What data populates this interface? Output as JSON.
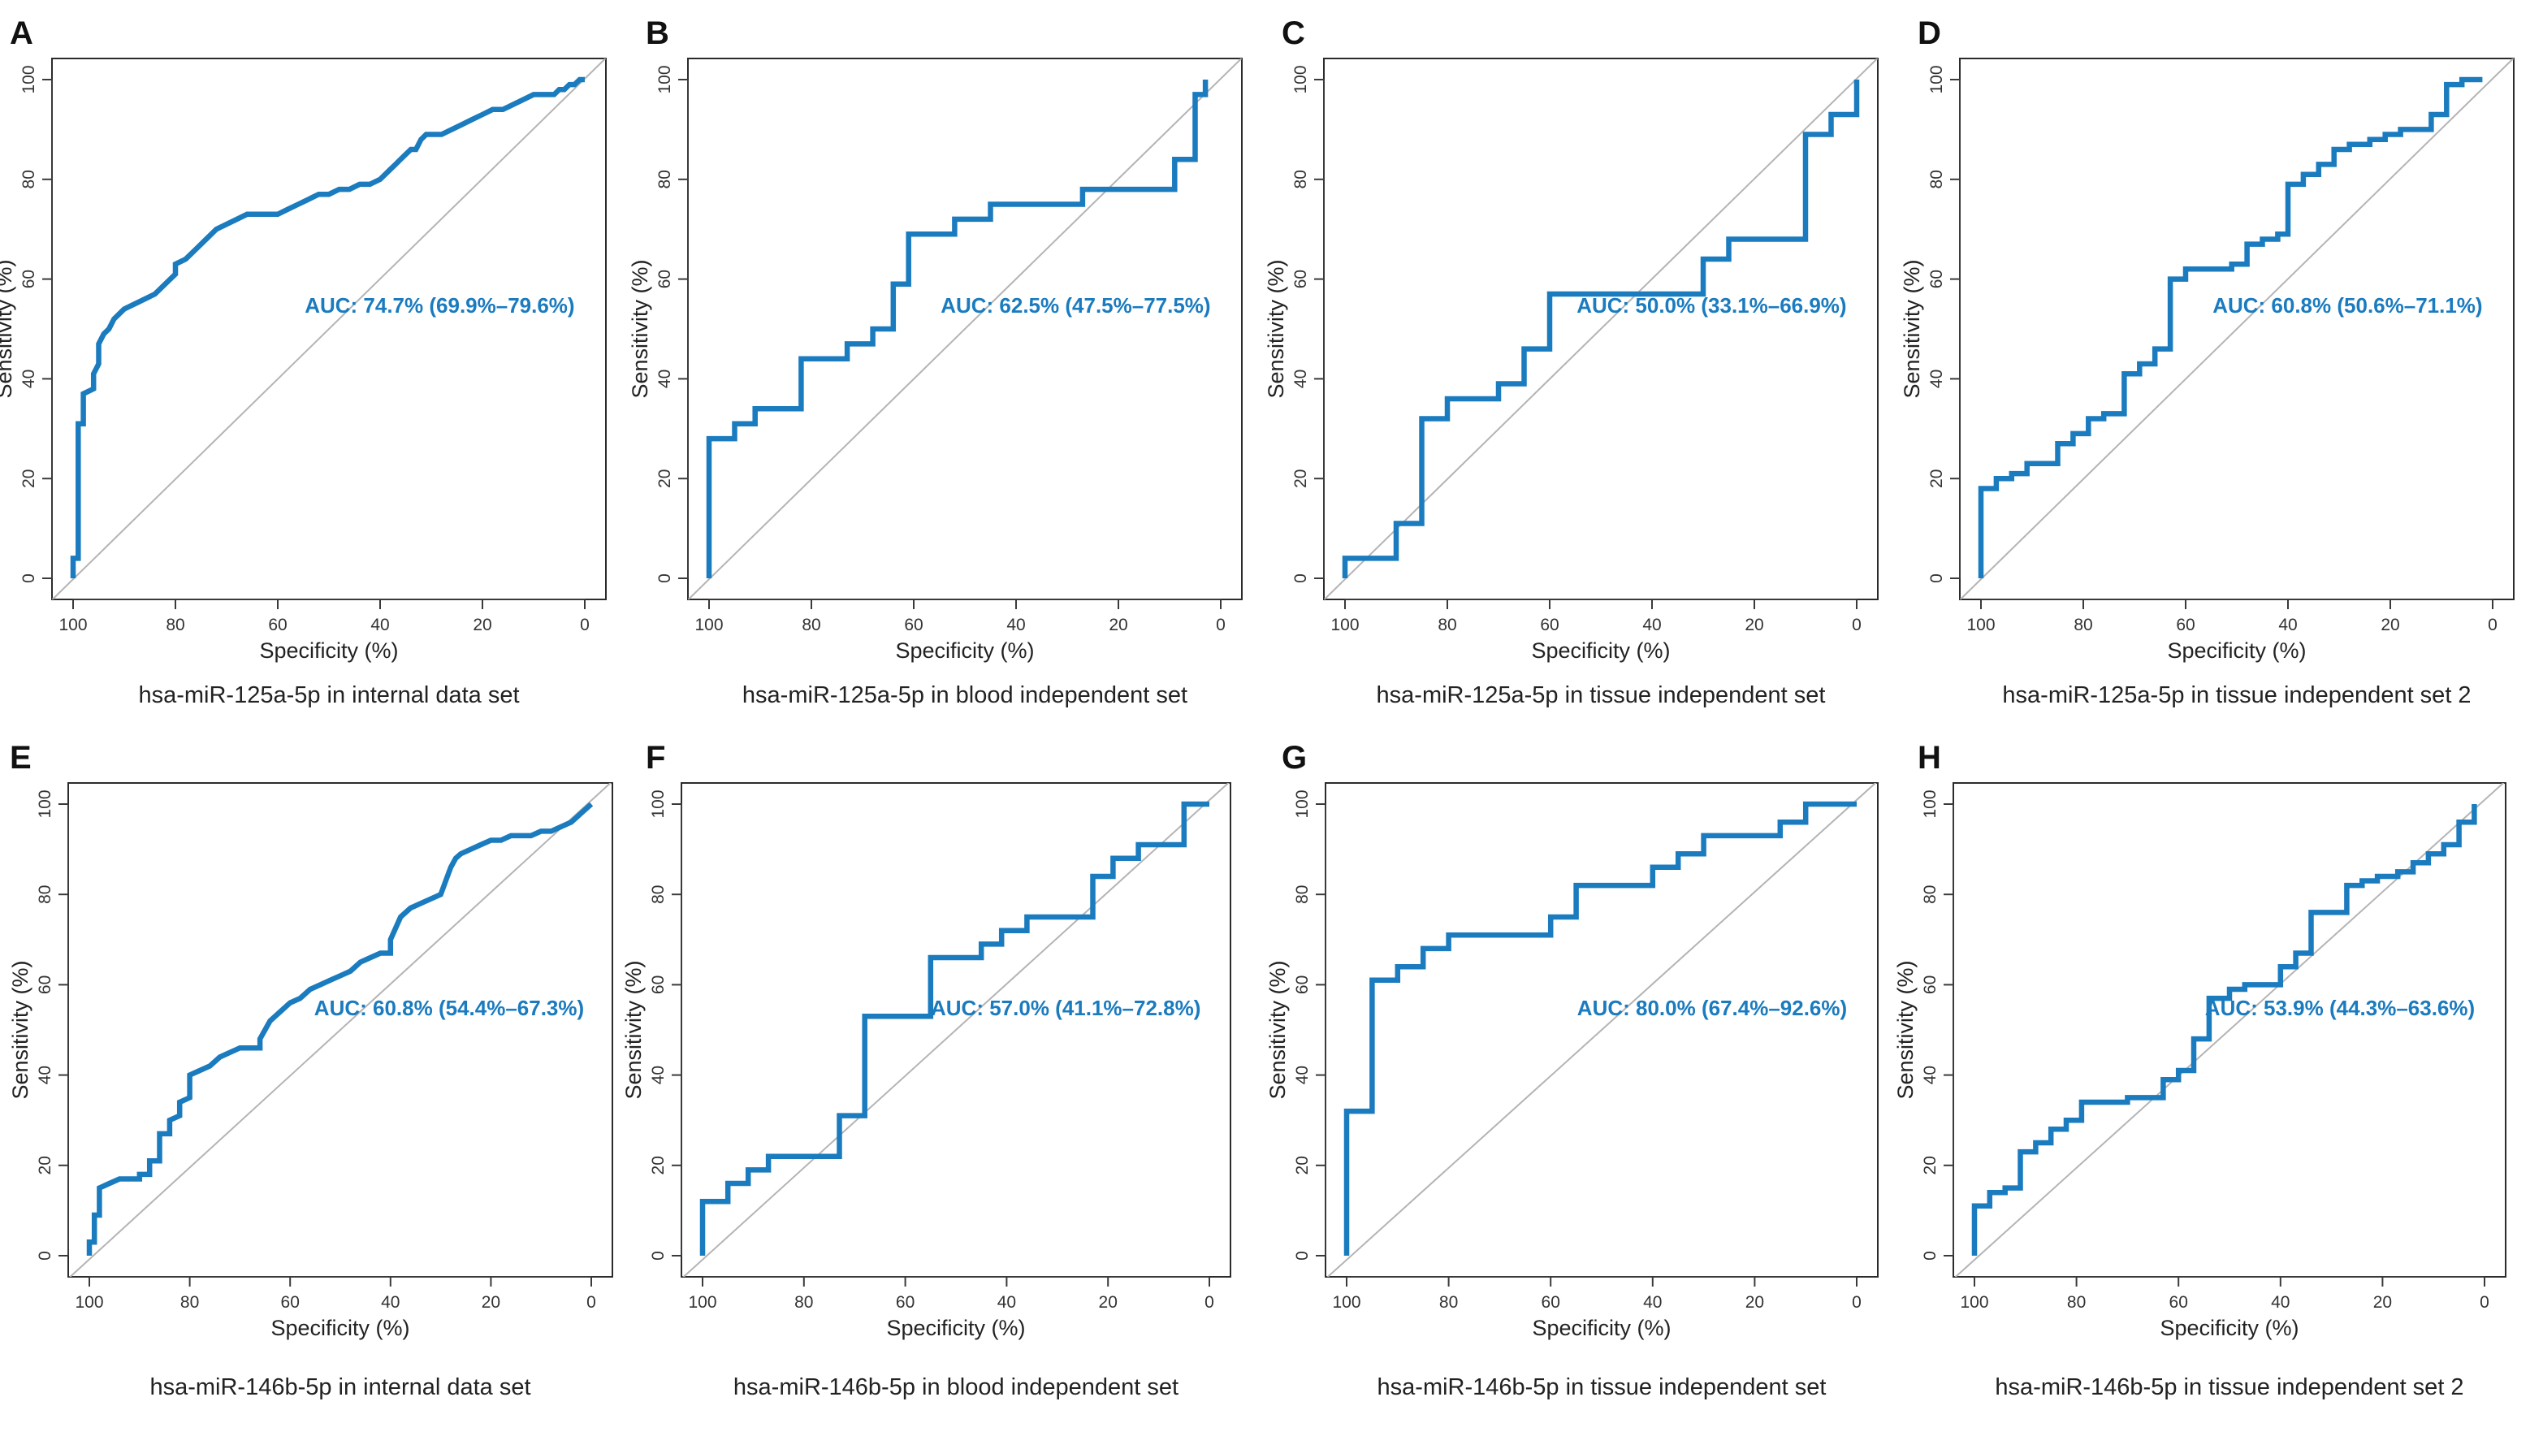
{
  "figure_title": "",
  "colors": {
    "curve": "#1a7bbf",
    "diagonal": "#b4b4b4",
    "auc_text": "#1a7bbf"
  },
  "chart_data": [
    {
      "panel": "A",
      "type": "line",
      "title": "hsa-miR-125a-5p in internal data set",
      "xlabel": "Specificity (%)",
      "ylabel": "Sensitivity (%)",
      "xlim": [
        100,
        0
      ],
      "ylim": [
        0,
        100
      ],
      "xticks": [
        100,
        80,
        60,
        40,
        20,
        0
      ],
      "yticks": [
        0,
        20,
        40,
        60,
        80,
        100
      ],
      "auc_label": "AUC: 74.7% (69.9%–79.6%)",
      "series": [
        {
          "name": "ROC",
          "x": [
            100,
            100,
            99,
            99,
            98,
            98,
            96,
            96,
            95,
            95,
            94,
            93,
            92,
            90,
            88,
            86,
            84,
            82,
            80,
            80,
            78,
            76,
            74,
            72,
            70,
            68,
            66,
            64,
            62,
            60,
            58,
            56,
            54,
            52,
            50,
            48,
            46,
            44,
            42,
            40,
            38,
            37,
            36,
            35,
            34,
            33,
            32,
            31,
            30,
            28,
            26,
            24,
            22,
            20,
            18,
            16,
            14,
            12,
            10,
            8,
            6,
            5,
            4,
            3,
            2,
            1,
            0
          ],
          "y": [
            0,
            4,
            4,
            31,
            31,
            37,
            38,
            41,
            43,
            47,
            49,
            50,
            52,
            54,
            55,
            56,
            57,
            59,
            61,
            63,
            64,
            66,
            68,
            70,
            71,
            72,
            73,
            73,
            73,
            73,
            74,
            75,
            76,
            77,
            77,
            78,
            78,
            79,
            79,
            80,
            82,
            83,
            84,
            85,
            86,
            86,
            88,
            89,
            89,
            89,
            90,
            91,
            92,
            93,
            94,
            94,
            95,
            96,
            97,
            97,
            97,
            98,
            98,
            99,
            99,
            100,
            100
          ]
        }
      ],
      "diagonal": true
    },
    {
      "panel": "B",
      "type": "line",
      "title": "hsa-miR-125a-5p in blood independent set",
      "xlabel": "Specificity (%)",
      "ylabel": "Sensitivity (%)",
      "xlim": [
        100,
        0
      ],
      "ylim": [
        0,
        100
      ],
      "xticks": [
        100,
        80,
        60,
        40,
        20,
        0
      ],
      "yticks": [
        0,
        20,
        40,
        60,
        80,
        100
      ],
      "auc_label": "AUC: 62.5% (47.5%–77.5%)",
      "series": [
        {
          "name": "ROC",
          "x": [
            100,
            100,
            95,
            95,
            91,
            91,
            82,
            82,
            73,
            73,
            68,
            68,
            64,
            64,
            61,
            61,
            52,
            52,
            45,
            45,
            27,
            27,
            9,
            9,
            5,
            5,
            3,
            3
          ],
          "y": [
            0,
            28,
            28,
            31,
            31,
            34,
            34,
            44,
            44,
            47,
            47,
            50,
            50,
            59,
            59,
            69,
            69,
            72,
            72,
            75,
            75,
            78,
            78,
            84,
            84,
            97,
            97,
            100
          ]
        }
      ],
      "diagonal": true
    },
    {
      "panel": "C",
      "type": "line",
      "title": "hsa-miR-125a-5p in tissue independent set",
      "xlabel": "Specificity (%)",
      "ylabel": "Sensitivity (%)",
      "xlim": [
        100,
        0
      ],
      "ylim": [
        0,
        100
      ],
      "xticks": [
        100,
        80,
        60,
        40,
        20,
        0
      ],
      "yticks": [
        0,
        20,
        40,
        60,
        80,
        100
      ],
      "auc_label": "AUC: 50.0% (33.1%–66.9%)",
      "series": [
        {
          "name": "ROC",
          "x": [
            100,
            100,
            90,
            90,
            85,
            85,
            80,
            80,
            70,
            70,
            65,
            65,
            60,
            60,
            30,
            30,
            25,
            25,
            10,
            10,
            5,
            5,
            0,
            0
          ],
          "y": [
            0,
            4,
            4,
            11,
            11,
            32,
            32,
            36,
            36,
            39,
            39,
            46,
            46,
            57,
            57,
            64,
            64,
            68,
            68,
            89,
            89,
            93,
            93,
            100
          ]
        }
      ],
      "diagonal": true
    },
    {
      "panel": "D",
      "type": "line",
      "title": "hsa-miR-125a-5p in tissue independent set 2",
      "xlabel": "Specificity (%)",
      "ylabel": "Sensitivity (%)",
      "xlim": [
        100,
        0
      ],
      "ylim": [
        0,
        100
      ],
      "xticks": [
        100,
        80,
        60,
        40,
        20,
        0
      ],
      "yticks": [
        0,
        20,
        40,
        60,
        80,
        100
      ],
      "auc_label": "AUC: 60.8% (50.6%–71.1%)",
      "series": [
        {
          "name": "ROC",
          "x": [
            100,
            100,
            97,
            97,
            94,
            94,
            91,
            91,
            85,
            85,
            82,
            82,
            79,
            79,
            76,
            76,
            72,
            72,
            69,
            69,
            66,
            66,
            63,
            63,
            60,
            60,
            57,
            57,
            51,
            51,
            48,
            48,
            45,
            45,
            42,
            42,
            40,
            40,
            37,
            37,
            34,
            34,
            31,
            31,
            28,
            28,
            24,
            24,
            21,
            21,
            18,
            18,
            12,
            12,
            9,
            9,
            6,
            6,
            2
          ],
          "y": [
            0,
            18,
            18,
            20,
            20,
            21,
            21,
            23,
            23,
            27,
            27,
            29,
            29,
            32,
            32,
            33,
            33,
            41,
            41,
            43,
            43,
            46,
            46,
            60,
            60,
            62,
            62,
            62,
            62,
            63,
            63,
            67,
            67,
            68,
            68,
            69,
            69,
            79,
            79,
            81,
            81,
            83,
            83,
            86,
            86,
            87,
            87,
            88,
            88,
            89,
            89,
            90,
            90,
            93,
            93,
            99,
            99,
            100,
            100
          ]
        }
      ],
      "diagonal": true
    },
    {
      "panel": "E",
      "type": "line",
      "title": "hsa-miR-146b-5p in internal data set",
      "xlabel": "Specificity (%)",
      "ylabel": "Sensitivity (%)",
      "xlim": [
        100,
        0
      ],
      "ylim": [
        0,
        100
      ],
      "xticks": [
        100,
        80,
        60,
        40,
        20,
        0
      ],
      "yticks": [
        0,
        20,
        40,
        60,
        80,
        100
      ],
      "auc_label": "AUC: 60.8% (54.4%–67.3%)",
      "series": [
        {
          "name": "ROC",
          "x": [
            100,
            100,
            99,
            99,
            98,
            98,
            96,
            94,
            92,
            90,
            90,
            88,
            88,
            86,
            86,
            84,
            84,
            82,
            82,
            80,
            80,
            78,
            76,
            74,
            72,
            70,
            68,
            66,
            66,
            64,
            62,
            60,
            58,
            56,
            54,
            52,
            50,
            48,
            46,
            44,
            42,
            40,
            40,
            38,
            36,
            34,
            32,
            30,
            29,
            28,
            27,
            26,
            24,
            22,
            20,
            18,
            16,
            14,
            12,
            10,
            8,
            6,
            4,
            3,
            2,
            1,
            0
          ],
          "y": [
            0,
            3,
            3,
            9,
            9,
            15,
            16,
            17,
            17,
            17,
            18,
            18,
            21,
            21,
            27,
            27,
            30,
            31,
            34,
            35,
            40,
            41,
            42,
            44,
            45,
            46,
            46,
            46,
            48,
            52,
            54,
            56,
            57,
            59,
            60,
            61,
            62,
            63,
            65,
            66,
            67,
            67,
            70,
            75,
            77,
            78,
            79,
            80,
            83,
            86,
            88,
            89,
            90,
            91,
            92,
            92,
            93,
            93,
            93,
            94,
            94,
            95,
            96,
            97,
            98,
            99,
            100
          ]
        }
      ],
      "diagonal": true
    },
    {
      "panel": "F",
      "type": "line",
      "title": "hsa-miR-146b-5p in blood independent set",
      "xlabel": "Specificity (%)",
      "ylabel": "Sensitivity (%)",
      "xlim": [
        100,
        0
      ],
      "ylim": [
        0,
        100
      ],
      "xticks": [
        100,
        80,
        60,
        40,
        20,
        0
      ],
      "yticks": [
        0,
        20,
        40,
        60,
        80,
        100
      ],
      "auc_label": "AUC: 57.0% (41.1%–72.8%)",
      "series": [
        {
          "name": "ROC",
          "x": [
            100,
            100,
            95,
            95,
            91,
            91,
            87,
            87,
            73,
            73,
            68,
            68,
            55,
            55,
            45,
            45,
            41,
            41,
            36,
            36,
            23,
            23,
            19,
            19,
            14,
            14,
            5,
            5,
            0
          ],
          "y": [
            0,
            12,
            12,
            16,
            16,
            19,
            19,
            22,
            22,
            31,
            31,
            53,
            53,
            66,
            66,
            69,
            69,
            72,
            72,
            75,
            75,
            84,
            84,
            88,
            88,
            91,
            91,
            100,
            100
          ]
        }
      ],
      "diagonal": true
    },
    {
      "panel": "G",
      "type": "line",
      "title": "hsa-miR-146b-5p in tissue independent set",
      "xlabel": "Specificity (%)",
      "ylabel": "Sensitivity (%)",
      "xlim": [
        100,
        0
      ],
      "ylim": [
        0,
        100
      ],
      "xticks": [
        100,
        80,
        60,
        40,
        20,
        0
      ],
      "yticks": [
        0,
        20,
        40,
        60,
        80,
        100
      ],
      "auc_label": "AUC: 80.0% (67.4%–92.6%)",
      "series": [
        {
          "name": "ROC",
          "x": [
            100,
            100,
            95,
            95,
            90,
            90,
            85,
            85,
            80,
            80,
            60,
            60,
            55,
            55,
            40,
            40,
            35,
            35,
            30,
            30,
            15,
            15,
            10,
            10,
            0
          ],
          "y": [
            0,
            32,
            32,
            61,
            61,
            64,
            64,
            68,
            68,
            71,
            71,
            75,
            75,
            82,
            82,
            86,
            86,
            89,
            89,
            93,
            93,
            96,
            96,
            100,
            100
          ]
        }
      ],
      "diagonal": true
    },
    {
      "panel": "H",
      "type": "line",
      "title": "hsa-miR-146b-5p in tissue independent set 2",
      "xlabel": "Specificity (%)",
      "ylabel": "Sensitivity (%)",
      "xlim": [
        100,
        0
      ],
      "ylim": [
        0,
        100
      ],
      "xticks": [
        100,
        80,
        60,
        40,
        20,
        0
      ],
      "yticks": [
        0,
        20,
        40,
        60,
        80,
        100
      ],
      "auc_label": "AUC: 53.9% (44.3%–63.6%)",
      "series": [
        {
          "name": "ROC",
          "x": [
            100,
            100,
            97,
            97,
            94,
            94,
            91,
            91,
            88,
            88,
            85,
            85,
            82,
            82,
            79,
            79,
            76,
            76,
            70,
            70,
            63,
            63,
            60,
            60,
            57,
            57,
            54,
            54,
            50,
            50,
            47,
            47,
            44,
            44,
            40,
            40,
            37,
            37,
            34,
            34,
            30,
            30,
            27,
            27,
            24,
            24,
            21,
            21,
            17,
            17,
            14,
            14,
            11,
            11,
            8,
            8,
            5,
            5,
            2,
            2
          ],
          "y": [
            0,
            11,
            11,
            14,
            14,
            15,
            15,
            23,
            23,
            25,
            25,
            28,
            28,
            30,
            30,
            34,
            34,
            34,
            34,
            35,
            35,
            39,
            39,
            41,
            41,
            48,
            48,
            57,
            57,
            59,
            59,
            60,
            60,
            60,
            60,
            64,
            64,
            67,
            67,
            76,
            76,
            76,
            76,
            82,
            82,
            83,
            83,
            84,
            84,
            85,
            85,
            87,
            87,
            89,
            89,
            91,
            91,
            96,
            96,
            100
          ]
        }
      ],
      "diagonal": true
    }
  ]
}
